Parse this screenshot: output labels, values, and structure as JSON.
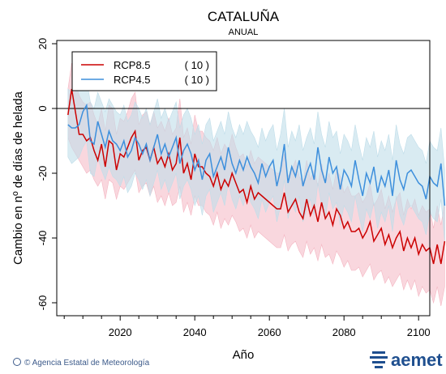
{
  "chart_data": {
    "type": "line",
    "title": "CATALUÑA",
    "subtitle": "ANUAL",
    "xlabel": "Año",
    "ylabel": "Cambio en nº de días de helada",
    "xlim": [
      2003,
      2103
    ],
    "ylim": [
      -64,
      21
    ],
    "xticks": [
      "2020",
      "2040",
      "2060",
      "2080",
      "2100"
    ],
    "yticks": [
      "20",
      "0",
      "-20",
      "-40",
      "-60"
    ],
    "zero_line": true,
    "legend_position": "top-left",
    "x_start": 2006,
    "series": [
      {
        "name": "RCP8.5",
        "count_label": "( 10 )",
        "color": "#cc0000",
        "band_color": "#f4b6c2",
        "values": [
          -2,
          6,
          -1,
          -8,
          -8,
          -10,
          -9,
          -13,
          -16,
          -11,
          -18,
          -10,
          -11,
          -19,
          -14,
          -15,
          -12,
          -9,
          -7,
          -16,
          -13,
          -12,
          -16,
          -12,
          -17,
          -15,
          -18,
          -14,
          -19,
          -17,
          -9,
          -20,
          -17,
          -22,
          -14,
          -18,
          -18,
          -20,
          -21,
          -24,
          -20,
          -25,
          -22,
          -24,
          -20,
          -23,
          -26,
          -25,
          -29,
          -24,
          -28,
          -26,
          -27,
          -28,
          -29,
          -30,
          -31,
          -31,
          -26,
          -32,
          -30,
          -28,
          -32,
          -34,
          -28,
          -33,
          -30,
          -35,
          -29,
          -34,
          -32,
          -36,
          -31,
          -33,
          -37,
          -35,
          -38,
          -38,
          -37,
          -40,
          -38,
          -35,
          -41,
          -39,
          -37,
          -42,
          -39,
          -43,
          -40,
          -38,
          -44,
          -40,
          -43,
          -40,
          -45,
          -42,
          -44,
          -43,
          -48,
          -42,
          -48,
          -41
        ],
        "band_low": [
          -9,
          -12,
          -14,
          -16,
          -18,
          -20,
          -19,
          -22,
          -24,
          -22,
          -28,
          -22,
          -23,
          -28,
          -24,
          -25,
          -23,
          -21,
          -19,
          -26,
          -24,
          -23,
          -27,
          -24,
          -29,
          -27,
          -30,
          -26,
          -30,
          -29,
          -24,
          -32,
          -29,
          -33,
          -27,
          -30,
          -30,
          -32,
          -33,
          -36,
          -32,
          -37,
          -34,
          -36,
          -33,
          -35,
          -38,
          -37,
          -40,
          -36,
          -40,
          -38,
          -39,
          -40,
          -41,
          -42,
          -43,
          -43,
          -39,
          -44,
          -42,
          -41,
          -44,
          -46,
          -41,
          -45,
          -43,
          -47,
          -42,
          -46,
          -45,
          -48,
          -44,
          -46,
          -49,
          -47,
          -50,
          -50,
          -49,
          -52,
          -50,
          -48,
          -53,
          -51,
          -50,
          -54,
          -52,
          -55,
          -53,
          -51,
          -56,
          -53,
          -56,
          -53,
          -58,
          -55,
          -57,
          -56,
          -60,
          -55,
          -61,
          -55
        ],
        "band_high": [
          6,
          14,
          8,
          4,
          2,
          1,
          2,
          -2,
          -5,
          0,
          -7,
          1,
          0,
          -8,
          -3,
          -4,
          -1,
          3,
          5,
          -5,
          -2,
          -1,
          -5,
          -1,
          -6,
          -4,
          -7,
          -3,
          -8,
          -6,
          3,
          -9,
          -6,
          -11,
          -2,
          -7,
          -7,
          -9,
          -10,
          -13,
          -9,
          -14,
          -11,
          -13,
          -8,
          -12,
          -15,
          -14,
          -18,
          -13,
          -17,
          -15,
          -16,
          -17,
          -18,
          -19,
          -20,
          -20,
          -14,
          -21,
          -19,
          -16,
          -21,
          -23,
          -16,
          -22,
          -19,
          -24,
          -17,
          -23,
          -20,
          -25,
          -19,
          -21,
          -26,
          -24,
          -27,
          -27,
          -26,
          -29,
          -27,
          -23,
          -30,
          -28,
          -25,
          -31,
          -27,
          -32,
          -28,
          -26,
          -33,
          -28,
          -31,
          -28,
          -33,
          -30,
          -32,
          -31,
          -37,
          -30,
          -36,
          -29
        ]
      },
      {
        "name": "RCP4.5",
        "count_label": "( 10 )",
        "color": "#3d8fdc",
        "band_color": "#bfdde9",
        "values": [
          -5,
          -6,
          -6,
          -5,
          -1,
          1,
          -10,
          -11,
          -4,
          -8,
          -12,
          -7,
          -10,
          -11,
          -13,
          -10,
          -15,
          -13,
          -9,
          -11,
          -14,
          -11,
          -16,
          -12,
          -8,
          -14,
          -11,
          -15,
          -12,
          -9,
          -17,
          -13,
          -11,
          -14,
          -19,
          -16,
          -22,
          -16,
          -14,
          -21,
          -18,
          -15,
          -19,
          -12,
          -17,
          -20,
          -16,
          -19,
          -15,
          -18,
          -20,
          -23,
          -17,
          -21,
          -18,
          -16,
          -24,
          -19,
          -11,
          -23,
          -18,
          -21,
          -16,
          -24,
          -20,
          -17,
          -22,
          -12,
          -19,
          -23,
          -15,
          -20,
          -18,
          -25,
          -19,
          -21,
          -24,
          -16,
          -22,
          -27,
          -20,
          -23,
          -18,
          -26,
          -21,
          -24,
          -19,
          -27,
          -16,
          -22,
          -25,
          -20,
          -19,
          -21,
          -23,
          -24,
          -28,
          -21,
          -23,
          -24,
          -17,
          -30
        ],
        "band_low": [
          -15,
          -17,
          -16,
          -15,
          -12,
          -10,
          -20,
          -21,
          -15,
          -19,
          -22,
          -18,
          -21,
          -22,
          -24,
          -21,
          -26,
          -24,
          -20,
          -22,
          -25,
          -22,
          -27,
          -23,
          -19,
          -25,
          -22,
          -26,
          -23,
          -20,
          -28,
          -24,
          -22,
          -25,
          -30,
          -27,
          -33,
          -27,
          -25,
          -32,
          -29,
          -26,
          -30,
          -23,
          -28,
          -31,
          -27,
          -30,
          -26,
          -29,
          -31,
          -34,
          -28,
          -32,
          -29,
          -27,
          -35,
          -30,
          -22,
          -34,
          -29,
          -32,
          -27,
          -35,
          -31,
          -28,
          -33,
          -23,
          -30,
          -34,
          -26,
          -31,
          -29,
          -36,
          -30,
          -32,
          -35,
          -27,
          -33,
          -38,
          -31,
          -34,
          -29,
          -37,
          -32,
          -35,
          -30,
          -38,
          -27,
          -33,
          -36,
          -31,
          -30,
          -32,
          -34,
          -35,
          -39,
          -32,
          -34,
          -35,
          -28,
          -41
        ],
        "band_high": [
          6,
          5,
          5,
          8,
          10,
          9,
          2,
          0,
          5,
          2,
          -1,
          3,
          1,
          -1,
          -2,
          1,
          -4,
          -2,
          2,
          0,
          -3,
          0,
          -5,
          -1,
          3,
          -3,
          0,
          -4,
          -1,
          2,
          -6,
          -2,
          0,
          -3,
          -8,
          -5,
          -11,
          -5,
          -3,
          -10,
          -7,
          -4,
          -8,
          -1,
          -6,
          -9,
          -5,
          -8,
          -4,
          -7,
          -9,
          -12,
          -6,
          -10,
          -7,
          -5,
          -13,
          -8,
          0,
          -12,
          -7,
          -10,
          -5,
          -13,
          -9,
          -6,
          -11,
          -1,
          -8,
          -12,
          -4,
          -9,
          -7,
          -14,
          -8,
          -10,
          -13,
          -5,
          -11,
          -16,
          -9,
          -12,
          -7,
          -15,
          -10,
          -13,
          -8,
          -16,
          -5,
          -11,
          -14,
          -9,
          -8,
          -10,
          -12,
          -13,
          -17,
          -10,
          -12,
          -13,
          -6,
          -19
        ]
      }
    ]
  },
  "footer": {
    "credit": "© Agencia Estatal de Meteorología",
    "brand": "aemet"
  }
}
